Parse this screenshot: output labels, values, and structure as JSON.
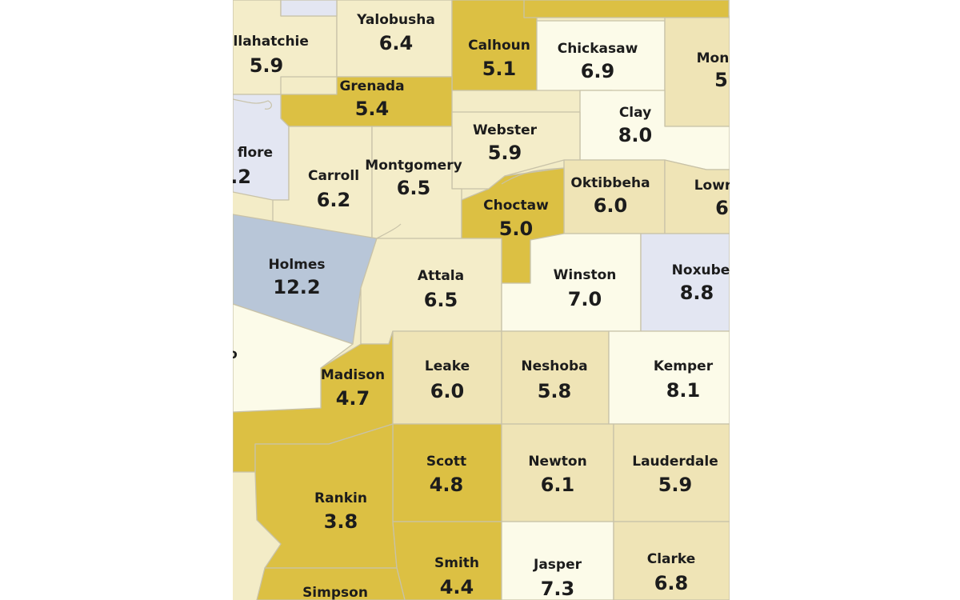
{
  "colors": {
    "darkGold": "#dcc043",
    "tan": "#efe4b6",
    "lightTan": "#f4edc9",
    "cream": "#fcfbe9",
    "lightBlue": "#e3e6f2",
    "blueGray": "#b8c6d8",
    "border": "#c8c2a8"
  },
  "counties": [
    {
      "id": "tallahatchie",
      "name": "allahatchie",
      "value": "5.9",
      "tier": "lightTan"
    },
    {
      "id": "yalobusha",
      "name": "Yalobusha",
      "value": "6.4",
      "tier": "lightTan"
    },
    {
      "id": "calhoun",
      "name": "Calhoun",
      "value": "5.1",
      "tier": "darkGold"
    },
    {
      "id": "chickasaw",
      "name": "Chickasaw",
      "value": "6.9",
      "tier": "cream"
    },
    {
      "id": "monroe",
      "name": "Mon",
      "value": "5.",
      "tier": "tan"
    },
    {
      "id": "grenada",
      "name": "Grenada",
      "value": "5.4",
      "tier": "darkGold"
    },
    {
      "id": "clay",
      "name": "Clay",
      "value": "8.0",
      "tier": "cream"
    },
    {
      "id": "sunflower",
      "name": "flore",
      "value": ".2",
      "tier": "lightBlue"
    },
    {
      "id": "webster",
      "name": "Webster",
      "value": "5.9",
      "tier": "lightTan"
    },
    {
      "id": "carroll",
      "name": "Carroll",
      "value": "6.2",
      "tier": "lightTan"
    },
    {
      "id": "montgomery",
      "name": "Montgomery",
      "value": "6.5",
      "tier": "lightTan"
    },
    {
      "id": "oktibbeha",
      "name": "Oktibbeha",
      "value": "6.0",
      "tier": "tan"
    },
    {
      "id": "lowndes",
      "name": "Lowr",
      "value": "6.",
      "tier": "tan"
    },
    {
      "id": "choctaw",
      "name": "Choctaw",
      "value": "5.0",
      "tier": "darkGold"
    },
    {
      "id": "holmes",
      "name": "Holmes",
      "value": "12.2",
      "tier": "blueGray"
    },
    {
      "id": "attala",
      "name": "Attala",
      "value": "6.5",
      "tier": "lightTan"
    },
    {
      "id": "winston",
      "name": "Winston",
      "value": "7.0",
      "tier": "cream"
    },
    {
      "id": "noxubee",
      "name": "Noxube",
      "value": "8.8",
      "tier": "lightBlue"
    },
    {
      "id": "madison",
      "name": "Madison",
      "value": "4.7",
      "tier": "darkGold"
    },
    {
      "id": "leake",
      "name": "Leake",
      "value": "6.0",
      "tier": "tan"
    },
    {
      "id": "neshoba",
      "name": "Neshoba",
      "value": "5.8",
      "tier": "tan"
    },
    {
      "id": "kemper",
      "name": "Kemper",
      "value": "8.1",
      "tier": "cream"
    },
    {
      "id": "scott",
      "name": "Scott",
      "value": "4.8",
      "tier": "darkGold"
    },
    {
      "id": "newton",
      "name": "Newton",
      "value": "6.1",
      "tier": "tan"
    },
    {
      "id": "lauderdale",
      "name": "Lauderdale",
      "value": "5.9",
      "tier": "tan"
    },
    {
      "id": "rankin",
      "name": "Rankin",
      "value": "3.8",
      "tier": "darkGold"
    },
    {
      "id": "smith",
      "name": "Smith",
      "value": "4.4",
      "tier": "darkGold"
    },
    {
      "id": "jasper",
      "name": "Jasper",
      "value": "7.3",
      "tier": "cream"
    },
    {
      "id": "clarke",
      "name": "Clarke",
      "value": "6.8",
      "tier": "tan"
    },
    {
      "id": "simpson",
      "name": "Simpson",
      "value": "",
      "tier": "darkGold"
    },
    {
      "id": "yazoo",
      "name": "o",
      "value": "",
      "tier": "cream"
    }
  ]
}
